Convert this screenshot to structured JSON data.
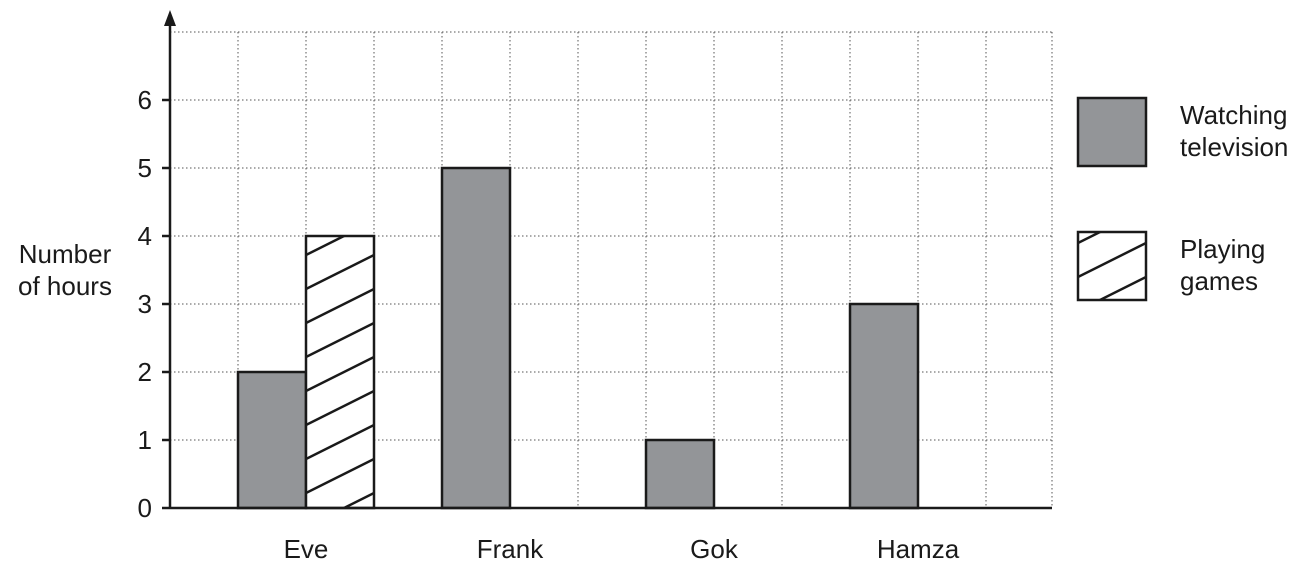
{
  "chart_data": {
    "type": "bar",
    "title": "",
    "xlabel": "",
    "ylabel": [
      "Number",
      "of hours"
    ],
    "categories": [
      "Eve",
      "Frank",
      "Gok",
      "Hamza"
    ],
    "series": [
      {
        "name": [
          "Watching",
          "television"
        ],
        "values": [
          2,
          5,
          1,
          3
        ],
        "fill": "#939598",
        "pattern": "solid"
      },
      {
        "name": [
          "Playing",
          "games"
        ],
        "values": [
          4,
          null,
          null,
          null
        ],
        "fill": "#ffffff",
        "pattern": "diagonal-hatch"
      }
    ],
    "ylim": [
      0,
      7
    ],
    "yticks": [
      0,
      1,
      2,
      3,
      4,
      5,
      6
    ],
    "grid": true,
    "legend_position": "right",
    "colors": {
      "axis": "#1a1a1a",
      "grid": "#555555",
      "bar_gray": "#939598"
    }
  }
}
